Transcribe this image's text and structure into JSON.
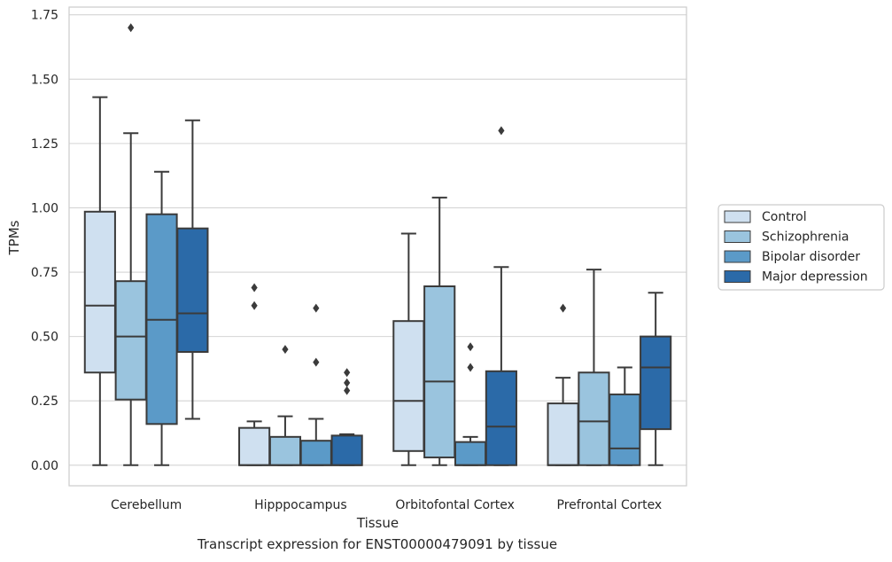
{
  "chart_data": {
    "type": "box",
    "title": "",
    "xlabel": "Tissue",
    "ylabel": "TPMs",
    "caption": "Transcript expression for ENST00000479091 by tissue",
    "ylim": [
      -0.08,
      1.78
    ],
    "yticks": [
      0.0,
      0.25,
      0.5,
      0.75,
      1.0,
      1.25,
      1.5,
      1.75
    ],
    "ytick_labels": [
      "0.00",
      "0.25",
      "0.50",
      "0.75",
      "1.00",
      "1.25",
      "1.50",
      "1.75"
    ],
    "grid": true,
    "legend_position": "right",
    "categories": [
      "Cerebellum",
      "Hipppocampus",
      "Orbitofontal Cortex",
      "Prefrontal Cortex"
    ],
    "series": [
      {
        "name": "Control",
        "color": "#cfe0f0",
        "boxes": [
          {
            "whisker_low": 0.0,
            "q1": 0.36,
            "median": 0.62,
            "q3": 0.985,
            "whisker_high": 1.43,
            "outliers": []
          },
          {
            "whisker_low": 0.0,
            "q1": 0.0,
            "median": 0.0,
            "q3": 0.145,
            "whisker_high": 0.17,
            "outliers": [
              0.62,
              0.69
            ]
          },
          {
            "whisker_low": 0.0,
            "q1": 0.055,
            "median": 0.25,
            "q3": 0.56,
            "whisker_high": 0.9,
            "outliers": []
          },
          {
            "whisker_low": 0.0,
            "q1": 0.0,
            "median": 0.0,
            "q3": 0.24,
            "whisker_high": 0.34,
            "outliers": [
              0.61
            ]
          }
        ]
      },
      {
        "name": "Schizophrenia",
        "color": "#9ac4de",
        "boxes": [
          {
            "whisker_low": 0.0,
            "q1": 0.255,
            "median": 0.5,
            "q3": 0.715,
            "whisker_high": 1.29,
            "outliers": [
              1.7
            ]
          },
          {
            "whisker_low": 0.0,
            "q1": 0.0,
            "median": 0.0,
            "q3": 0.11,
            "whisker_high": 0.19,
            "outliers": [
              0.45
            ]
          },
          {
            "whisker_low": 0.0,
            "q1": 0.03,
            "median": 0.325,
            "q3": 0.695,
            "whisker_high": 1.04,
            "outliers": []
          },
          {
            "whisker_low": 0.0,
            "q1": 0.0,
            "median": 0.17,
            "q3": 0.36,
            "whisker_high": 0.76,
            "outliers": []
          }
        ]
      },
      {
        "name": "Bipolar disorder",
        "color": "#5b9ac8",
        "boxes": [
          {
            "whisker_low": 0.0,
            "q1": 0.16,
            "median": 0.565,
            "q3": 0.975,
            "whisker_high": 1.14,
            "outliers": []
          },
          {
            "whisker_low": 0.0,
            "q1": 0.0,
            "median": 0.0,
            "q3": 0.095,
            "whisker_high": 0.18,
            "outliers": [
              0.4,
              0.61
            ]
          },
          {
            "whisker_low": 0.0,
            "q1": 0.0,
            "median": 0.0,
            "q3": 0.09,
            "whisker_high": 0.11,
            "outliers": [
              0.38,
              0.46
            ]
          },
          {
            "whisker_low": 0.0,
            "q1": 0.0,
            "median": 0.065,
            "q3": 0.275,
            "whisker_high": 0.38,
            "outliers": []
          }
        ]
      },
      {
        "name": "Major depression",
        "color": "#2b6aa8",
        "boxes": [
          {
            "whisker_low": 0.18,
            "q1": 0.44,
            "median": 0.59,
            "q3": 0.92,
            "whisker_high": 1.34,
            "outliers": []
          },
          {
            "whisker_low": 0.0,
            "q1": 0.0,
            "median": 0.0,
            "q3": 0.115,
            "whisker_high": 0.12,
            "outliers": [
              0.29,
              0.32,
              0.36
            ]
          },
          {
            "whisker_low": 0.0,
            "q1": 0.0,
            "median": 0.15,
            "q3": 0.365,
            "whisker_high": 0.77,
            "outliers": [
              1.3
            ]
          },
          {
            "whisker_low": 0.0,
            "q1": 0.14,
            "median": 0.38,
            "q3": 0.5,
            "whisker_high": 0.67,
            "outliers": []
          }
        ]
      }
    ]
  }
}
